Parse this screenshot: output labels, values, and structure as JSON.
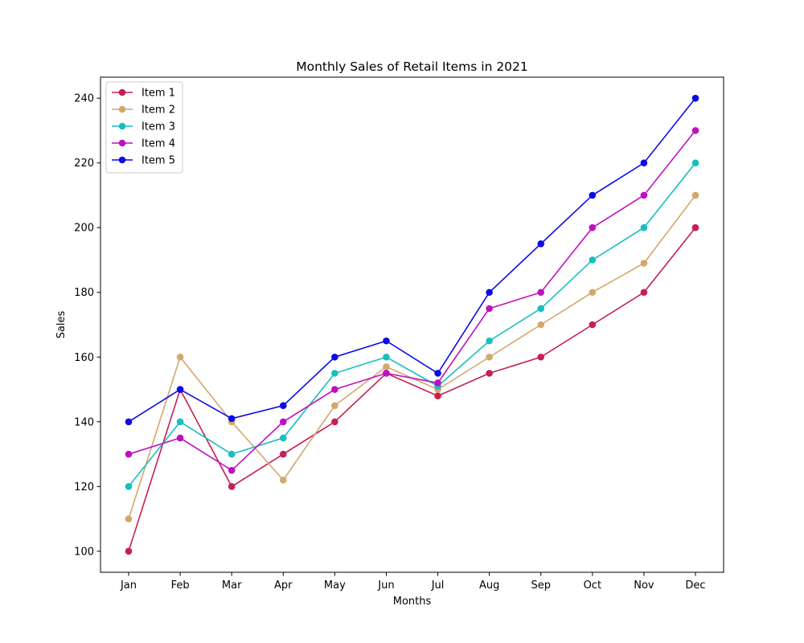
{
  "chart_data": {
    "type": "line",
    "title": "Monthly Sales of Retail Items in 2021",
    "xlabel": "Months",
    "ylabel": "Sales",
    "categories": [
      "Jan",
      "Feb",
      "Mar",
      "Apr",
      "May",
      "Jun",
      "Jul",
      "Aug",
      "Sep",
      "Oct",
      "Nov",
      "Dec"
    ],
    "ylim": [
      93.5,
      246.5
    ],
    "yticks": [
      100,
      120,
      140,
      160,
      180,
      200,
      220,
      240
    ],
    "grid": false,
    "legend_position": "top-left",
    "marker": "circle",
    "series": [
      {
        "name": "Item 1",
        "color": "#c71f52",
        "values": [
          100,
          150,
          120,
          130,
          140,
          155,
          148,
          155,
          160,
          170,
          180,
          200
        ]
      },
      {
        "name": "Item 2",
        "color": "#d4a76a",
        "values": [
          110,
          160,
          140,
          122,
          145,
          157,
          150,
          160,
          170,
          180,
          189,
          210
        ]
      },
      {
        "name": "Item 3",
        "color": "#17bfbf",
        "values": [
          120,
          140,
          130,
          135,
          155,
          160,
          151,
          165,
          175,
          190,
          200,
          220
        ]
      },
      {
        "name": "Item 4",
        "color": "#bf0fbf",
        "values": [
          130,
          135,
          125,
          140,
          150,
          155,
          152,
          175,
          180,
          200,
          210,
          230
        ]
      },
      {
        "name": "Item 5",
        "color": "#0b0be8",
        "values": [
          140,
          150,
          141,
          145,
          160,
          165,
          155,
          180,
          195,
          210,
          220,
          240
        ]
      }
    ]
  }
}
